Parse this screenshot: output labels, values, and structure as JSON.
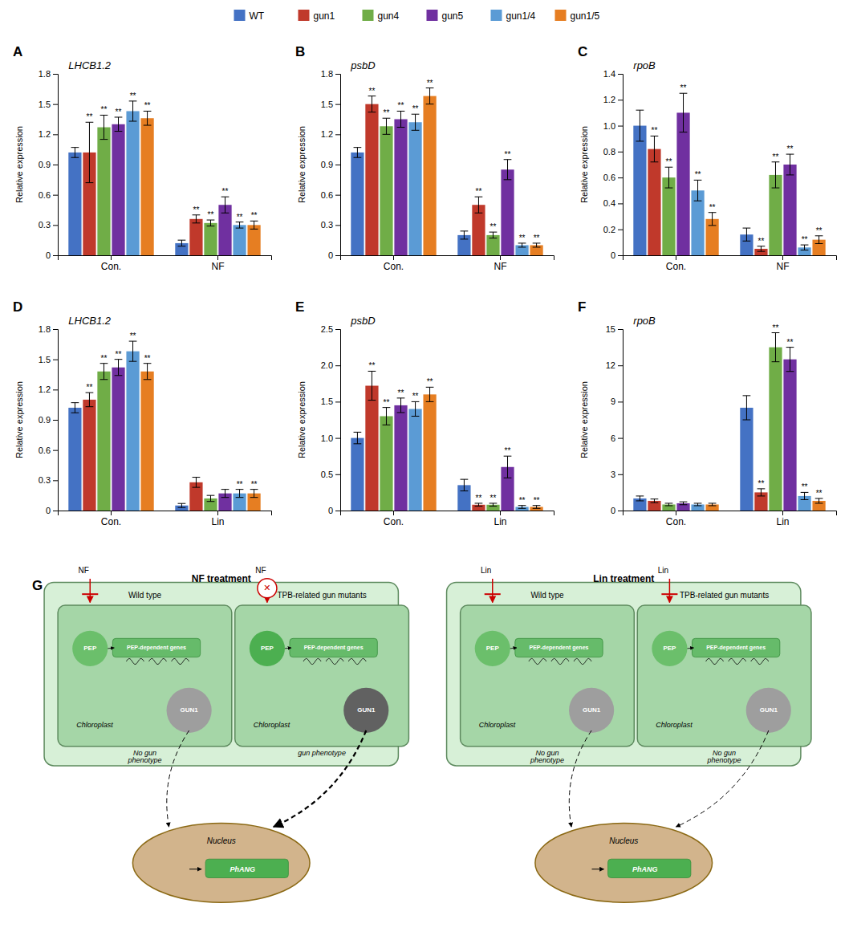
{
  "chart_data": [
    {
      "type": "bar",
      "title": "LHCB1.2",
      "annotations": [
        "A"
      ],
      "ylabel": "Relative expression",
      "categories": [
        "Con.",
        "NF"
      ],
      "ylim": [
        0,
        1.8
      ],
      "yticks": [
        0,
        0.3,
        0.6,
        0.9,
        1.2,
        1.5,
        1.8
      ],
      "legend": "top",
      "sig_label": "**",
      "series": [
        {
          "name": "WT",
          "color": "#4472C4",
          "values": [
            1.02,
            0.12
          ],
          "errors": [
            0.05,
            0.03
          ],
          "sig": [
            false,
            false
          ]
        },
        {
          "name": "gun1",
          "color": "#C0392B",
          "values": [
            1.02,
            0.36
          ],
          "errors": [
            0.3,
            0.04
          ],
          "sig": [
            true,
            true
          ]
        },
        {
          "name": "gun4",
          "color": "#70AD47",
          "values": [
            1.27,
            0.32
          ],
          "errors": [
            0.12,
            0.03
          ],
          "sig": [
            true,
            true
          ]
        },
        {
          "name": "gun5",
          "color": "#7030A0",
          "values": [
            1.3,
            0.5
          ],
          "errors": [
            0.07,
            0.08
          ],
          "sig": [
            true,
            true
          ]
        },
        {
          "name": "gun1/4",
          "color": "#5B9BD5",
          "values": [
            1.43,
            0.3
          ],
          "errors": [
            0.1,
            0.03
          ],
          "sig": [
            true,
            true
          ]
        },
        {
          "name": "gun1/5",
          "color": "#E67E22",
          "values": [
            1.36,
            0.3
          ],
          "errors": [
            0.07,
            0.04
          ],
          "sig": [
            true,
            true
          ]
        }
      ]
    },
    {
      "type": "bar",
      "title": "psbD",
      "annotations": [
        "B"
      ],
      "ylabel": "Relative expression",
      "categories": [
        "Con.",
        "NF"
      ],
      "ylim": [
        0,
        1.8
      ],
      "yticks": [
        0,
        0.3,
        0.6,
        0.9,
        1.2,
        1.5,
        1.8
      ],
      "sig_label": "**",
      "series": [
        {
          "name": "WT",
          "color": "#4472C4",
          "values": [
            1.02,
            0.2
          ],
          "errors": [
            0.05,
            0.04
          ],
          "sig": [
            false,
            false
          ]
        },
        {
          "name": "gun1",
          "color": "#C0392B",
          "values": [
            1.5,
            0.5
          ],
          "errors": [
            0.08,
            0.08
          ],
          "sig": [
            true,
            true
          ]
        },
        {
          "name": "gun4",
          "color": "#70AD47",
          "values": [
            1.28,
            0.2
          ],
          "errors": [
            0.08,
            0.03
          ],
          "sig": [
            true,
            true
          ]
        },
        {
          "name": "gun5",
          "color": "#7030A0",
          "values": [
            1.35,
            0.85
          ],
          "errors": [
            0.08,
            0.1
          ],
          "sig": [
            true,
            true
          ]
        },
        {
          "name": "gun1/4",
          "color": "#5B9BD5",
          "values": [
            1.32,
            0.1
          ],
          "errors": [
            0.08,
            0.02
          ],
          "sig": [
            true,
            true
          ]
        },
        {
          "name": "gun1/5",
          "color": "#E67E22",
          "values": [
            1.58,
            0.1
          ],
          "errors": [
            0.08,
            0.02
          ],
          "sig": [
            true,
            true
          ]
        }
      ]
    },
    {
      "type": "bar",
      "title": "rpoB",
      "annotations": [
        "C"
      ],
      "ylabel": "Relative expression",
      "categories": [
        "Con.",
        "NF"
      ],
      "ylim": [
        0,
        1.4
      ],
      "yticks": [
        0,
        0.2,
        0.4,
        0.6,
        0.8,
        {
          "value": 1.0,
          "label": "1.0"
        },
        1.2,
        1.4
      ],
      "sig_label": "**",
      "series": [
        {
          "name": "WT",
          "color": "#4472C4",
          "values": [
            1.0,
            0.16
          ],
          "errors": [
            0.12,
            0.05
          ],
          "sig": [
            false,
            false
          ]
        },
        {
          "name": "gun1",
          "color": "#C0392B",
          "values": [
            0.82,
            0.05
          ],
          "errors": [
            0.1,
            0.02
          ],
          "sig": [
            true,
            true
          ]
        },
        {
          "name": "gun4",
          "color": "#70AD47",
          "values": [
            0.6,
            0.62
          ],
          "errors": [
            0.08,
            0.1
          ],
          "sig": [
            true,
            true
          ]
        },
        {
          "name": "gun5",
          "color": "#7030A0",
          "values": [
            1.1,
            0.7
          ],
          "errors": [
            0.15,
            0.08
          ],
          "sig": [
            true,
            true
          ]
        },
        {
          "name": "gun1/4",
          "color": "#5B9BD5",
          "values": [
            0.5,
            0.06
          ],
          "errors": [
            0.08,
            0.02
          ],
          "sig": [
            true,
            true
          ]
        },
        {
          "name": "gun1/5",
          "color": "#E67E22",
          "values": [
            0.28,
            0.12
          ],
          "errors": [
            0.05,
            0.03
          ],
          "sig": [
            true,
            true
          ]
        }
      ]
    },
    {
      "type": "bar",
      "title": "LHCB1.2",
      "annotations": [
        "D"
      ],
      "ylabel": "Relative expression",
      "categories": [
        "Con.",
        "Lin"
      ],
      "ylim": [
        0,
        1.8
      ],
      "yticks": [
        0,
        0.3,
        0.6,
        0.9,
        1.2,
        1.5,
        1.8
      ],
      "sig_label": "**",
      "series": [
        {
          "name": "WT",
          "color": "#4472C4",
          "values": [
            1.02,
            0.05
          ],
          "errors": [
            0.05,
            0.02
          ],
          "sig": [
            false,
            false
          ]
        },
        {
          "name": "gun1",
          "color": "#C0392B",
          "values": [
            1.1,
            0.28
          ],
          "errors": [
            0.07,
            0.05
          ],
          "sig": [
            true,
            false
          ]
        },
        {
          "name": "gun4",
          "color": "#70AD47",
          "values": [
            1.38,
            0.12
          ],
          "errors": [
            0.08,
            0.03
          ],
          "sig": [
            true,
            false
          ]
        },
        {
          "name": "gun5",
          "color": "#7030A0",
          "values": [
            1.42,
            0.17
          ],
          "errors": [
            0.08,
            0.04
          ],
          "sig": [
            true,
            false
          ]
        },
        {
          "name": "gun1/4",
          "color": "#5B9BD5",
          "values": [
            1.58,
            0.17
          ],
          "errors": [
            0.1,
            0.04
          ],
          "sig": [
            true,
            true
          ]
        },
        {
          "name": "gun1/5",
          "color": "#E67E22",
          "values": [
            1.38,
            0.17
          ],
          "errors": [
            0.08,
            0.04
          ],
          "sig": [
            true,
            true
          ]
        }
      ]
    },
    {
      "type": "bar",
      "title": "psbD",
      "annotations": [
        "E"
      ],
      "ylabel": "Relative expression",
      "categories": [
        "Con.",
        "Lin"
      ],
      "ylim": [
        0,
        2.5
      ],
      "yticks": [
        0,
        0.5,
        {
          "value": 1.0,
          "label": "1.0"
        },
        1.5,
        {
          "value": 2.0,
          "label": "2.0"
        },
        2.5
      ],
      "sig_label": "**",
      "series": [
        {
          "name": "WT",
          "color": "#4472C4",
          "values": [
            1.0,
            0.35
          ],
          "errors": [
            0.08,
            0.08
          ],
          "sig": [
            false,
            false
          ]
        },
        {
          "name": "gun1",
          "color": "#C0392B",
          "values": [
            1.72,
            0.08
          ],
          "errors": [
            0.2,
            0.02
          ],
          "sig": [
            true,
            true
          ]
        },
        {
          "name": "gun4",
          "color": "#70AD47",
          "values": [
            1.3,
            0.08
          ],
          "errors": [
            0.12,
            0.02
          ],
          "sig": [
            true,
            true
          ]
        },
        {
          "name": "gun5",
          "color": "#7030A0",
          "values": [
            1.45,
            0.6
          ],
          "errors": [
            0.1,
            0.15
          ],
          "sig": [
            true,
            true
          ]
        },
        {
          "name": "gun1/4",
          "color": "#5B9BD5",
          "values": [
            1.4,
            0.05
          ],
          "errors": [
            0.1,
            0.02
          ],
          "sig": [
            true,
            true
          ]
        },
        {
          "name": "gun1/5",
          "color": "#E67E22",
          "values": [
            1.6,
            0.05
          ],
          "errors": [
            0.1,
            0.02
          ],
          "sig": [
            true,
            true
          ]
        }
      ]
    },
    {
      "type": "bar",
      "title": "rpoB",
      "annotations": [
        "F"
      ],
      "ylabel": "Relative expression",
      "categories": [
        "Con.",
        "Lin"
      ],
      "ylim": [
        0,
        15
      ],
      "yticks": [
        0,
        3,
        6,
        9,
        12,
        15
      ],
      "sig_label": "**",
      "series": [
        {
          "name": "WT",
          "color": "#4472C4",
          "values": [
            1.0,
            8.5
          ],
          "errors": [
            0.2,
            1.0
          ],
          "sig": [
            false,
            false
          ]
        },
        {
          "name": "gun1",
          "color": "#C0392B",
          "values": [
            0.8,
            1.5
          ],
          "errors": [
            0.15,
            0.3
          ],
          "sig": [
            false,
            true
          ]
        },
        {
          "name": "gun4",
          "color": "#70AD47",
          "values": [
            0.5,
            13.5
          ],
          "errors": [
            0.1,
            1.2
          ],
          "sig": [
            false,
            true
          ]
        },
        {
          "name": "gun5",
          "color": "#7030A0",
          "values": [
            0.6,
            12.5
          ],
          "errors": [
            0.12,
            1.0
          ],
          "sig": [
            false,
            true
          ]
        },
        {
          "name": "gun1/4",
          "color": "#5B9BD5",
          "values": [
            0.5,
            1.2
          ],
          "errors": [
            0.1,
            0.3
          ],
          "sig": [
            false,
            true
          ]
        },
        {
          "name": "gun1/5",
          "color": "#E67E22",
          "values": [
            0.5,
            0.8
          ],
          "errors": [
            0.1,
            0.2
          ],
          "sig": [
            false,
            true
          ]
        }
      ]
    },
    {
      "type": "diagram",
      "annotations": [
        "G"
      ],
      "labels": {
        "pep": "PEP",
        "genes": "PEP-dependent genes",
        "gun1": "GUN1",
        "organelle": "Chloroplast",
        "nucleus": "Nucleus",
        "gene": "PhANG",
        "blocked": "✕"
      },
      "sections": [
        {
          "title": "NF treatment",
          "treatment": "NF",
          "panels": [
            {
              "title": "Wild type",
              "phenotype": "No gun\nphenotype",
              "blocked": false,
              "strong": false
            },
            {
              "title": "TPB-related gun mutants",
              "phenotype": "gun phenotype",
              "blocked": true,
              "strong": true
            }
          ]
        },
        {
          "title": "Lin treatment",
          "treatment": "Lin",
          "panels": [
            {
              "title": "Wild type",
              "phenotype": "No gun\nphenotype",
              "blocked": false,
              "strong": false
            },
            {
              "title": "TPB-related gun mutants",
              "phenotype": "No gun\nphenotype",
              "blocked": false,
              "strong": false
            }
          ]
        }
      ]
    }
  ]
}
